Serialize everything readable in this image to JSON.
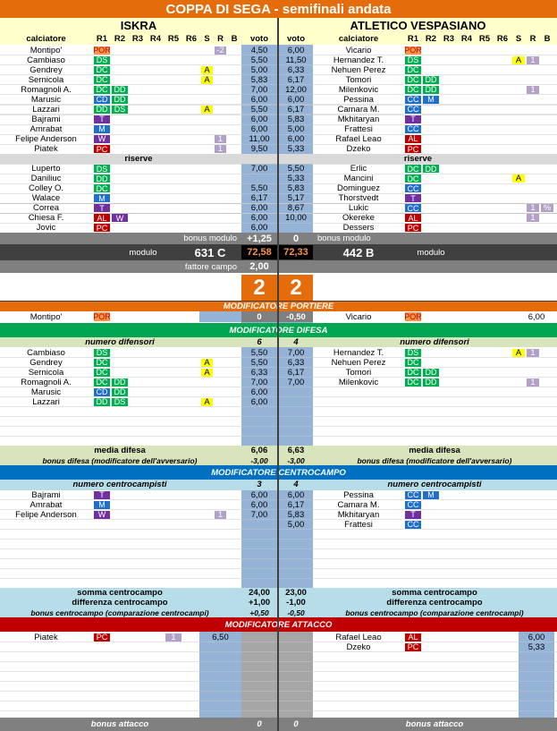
{
  "title": "COPPA DI SEGA - semifinali andata",
  "teams": [
    "ISKRA",
    "ATLETICO VESPASIANO"
  ],
  "header_home": [
    "calciatore",
    "R1",
    "R2",
    "R3",
    "R4",
    "R5",
    "R6",
    "S",
    "R",
    "B",
    "voto"
  ],
  "header_away": [
    "voto",
    "calciatore",
    "R1",
    "R2",
    "R3",
    "R4",
    "R5",
    "R6",
    "S",
    "R",
    "B"
  ],
  "starters": {
    "home": [
      {
        "name": "Montipo'",
        "roles": [
          "POR"
        ],
        "r": "-2",
        "voto": "4,50"
      },
      {
        "name": "Cambiaso",
        "roles": [
          "DS"
        ],
        "voto": "5,50"
      },
      {
        "name": "Gendrey",
        "roles": [
          "DC"
        ],
        "s": "A",
        "voto": "5,00"
      },
      {
        "name": "Sernicola",
        "roles": [
          "DC"
        ],
        "s": "A",
        "voto": "5,83"
      },
      {
        "name": "Romagnoli A.",
        "roles": [
          "DC",
          "DD"
        ],
        "voto": "7,00"
      },
      {
        "name": "Marusic",
        "roles": [
          "CD",
          "DD"
        ],
        "voto": "6,00"
      },
      {
        "name": "Lazzari",
        "roles": [
          "DD",
          "DS"
        ],
        "s": "A",
        "voto": "5,50"
      },
      {
        "name": "Bajrami",
        "roles": [
          "T"
        ],
        "voto": "6,00"
      },
      {
        "name": "Amrabat",
        "roles": [
          "M"
        ],
        "voto": "6,00"
      },
      {
        "name": "Felipe Anderson",
        "roles": [
          "W"
        ],
        "r": "1",
        "voto": "11,00"
      },
      {
        "name": "Piatek",
        "roles": [
          "PC"
        ],
        "r": "1",
        "voto": "9,50"
      }
    ],
    "away": [
      {
        "name": "Vicario",
        "roles": [
          "POR"
        ],
        "voto": "6,00"
      },
      {
        "name": "Hernandez T.",
        "roles": [
          "DS"
        ],
        "s": "A",
        "r": "1",
        "voto": "11,50"
      },
      {
        "name": "Nehuen Perez",
        "roles": [
          "DC"
        ],
        "voto": "6,33"
      },
      {
        "name": "Tomori",
        "roles": [
          "DC",
          "DD"
        ],
        "voto": "6,17"
      },
      {
        "name": "Milenkovic",
        "roles": [
          "DC",
          "DD"
        ],
        "r": "1",
        "voto": "12,00"
      },
      {
        "name": "Pessina",
        "roles": [
          "CC",
          "M"
        ],
        "voto": "6,00"
      },
      {
        "name": "Camara M.",
        "roles": [
          "CC"
        ],
        "voto": "6,17"
      },
      {
        "name": "Mkhitaryan",
        "roles": [
          "T"
        ],
        "voto": "5,83"
      },
      {
        "name": "Frattesi",
        "roles": [
          "CC"
        ],
        "voto": "5,00"
      },
      {
        "name": "Rafael Leao",
        "roles": [
          "AL"
        ],
        "voto": "6,00"
      },
      {
        "name": "Dzeko",
        "roles": [
          "PC"
        ],
        "voto": "5,33"
      }
    ]
  },
  "reserves": {
    "labels": [
      "riserve",
      "riserve"
    ],
    "home": [
      {
        "name": "Luperto",
        "roles": [
          "DS"
        ],
        "voto": "7,00"
      },
      {
        "name": "Daniliuc",
        "roles": [
          "DD"
        ]
      },
      {
        "name": "Colley O.",
        "roles": [
          "DC"
        ],
        "voto": "5,50"
      },
      {
        "name": "Walace",
        "roles": [
          "M"
        ],
        "voto": "6,17"
      },
      {
        "name": "Correa",
        "roles": [
          "T"
        ],
        "voto": "6,00"
      },
      {
        "name": "Chiesa F.",
        "roles": [
          "AL",
          "W"
        ],
        "voto": "6,00"
      },
      {
        "name": "Jovic",
        "roles": [
          "PC"
        ],
        "voto": "6,00"
      }
    ],
    "away": [
      {
        "name": "Erlic",
        "roles": [
          "DC",
          "DD"
        ],
        "voto": "5,50"
      },
      {
        "name": "Mancini",
        "roles": [
          "DC"
        ],
        "s": "A",
        "voto": "5,33"
      },
      {
        "name": "Dominguez",
        "roles": [
          "CC"
        ],
        "voto": "5,83"
      },
      {
        "name": "Thorstvedt",
        "roles": [
          "T"
        ],
        "voto": "5,17"
      },
      {
        "name": "Lukic",
        "roles": [
          "CC"
        ],
        "r": "1",
        "b": "%",
        "voto": "8,67"
      },
      {
        "name": "Okereke",
        "roles": [
          "AL"
        ],
        "r": "1",
        "voto": "10,00"
      },
      {
        "name": "Dessers",
        "roles": [
          "PC"
        ]
      }
    ]
  },
  "bonus_modulo": {
    "labels": [
      "bonus modulo",
      "bonus modulo"
    ],
    "values": [
      "+1,25",
      "0"
    ]
  },
  "modulo": {
    "labels": [
      "modulo",
      "modulo"
    ],
    "formations": [
      "631 C",
      "442 B"
    ],
    "totals": [
      "72,58",
      "72,33"
    ]
  },
  "fattore_campo": {
    "label": "fattore campo",
    "value": "2,00"
  },
  "score": [
    "2",
    "2"
  ],
  "portiere": {
    "title": "MODIFICATORE PORTIERE",
    "home": {
      "name": "Montipo'",
      "roles": [
        "POR"
      ],
      "voto": "6,50"
    },
    "away": {
      "name": "Vicario",
      "roles": [
        "POR"
      ],
      "voto": "6,00"
    },
    "values": [
      "0",
      "-0,50"
    ]
  },
  "difesa": {
    "title": "MODIFICATORE DIFESA",
    "count": {
      "labels": [
        "numero difensori",
        "numero difensori"
      ],
      "values": [
        "6",
        "4"
      ]
    },
    "home": [
      {
        "name": "Cambiaso",
        "roles": [
          "DS"
        ],
        "voto": "5,50"
      },
      {
        "name": "Gendrey",
        "roles": [
          "DC"
        ],
        "s": "A",
        "voto": "5,50"
      },
      {
        "name": "Sernicola",
        "roles": [
          "DC"
        ],
        "s": "A",
        "voto": "6,33"
      },
      {
        "name": "Romagnoli A.",
        "roles": [
          "DC",
          "DD"
        ],
        "voto": "7,00"
      },
      {
        "name": "Marusic",
        "roles": [
          "CD",
          "DD"
        ],
        "voto": "6,00"
      },
      {
        "name": "Lazzari",
        "roles": [
          "DD",
          "DS"
        ],
        "s": "A",
        "voto": "6,00"
      }
    ],
    "away": [
      {
        "name": "Hernandez T.",
        "roles": [
          "DS"
        ],
        "s": "A",
        "r": "1",
        "voto": "7,00"
      },
      {
        "name": "Nehuen Perez",
        "roles": [
          "DC"
        ],
        "voto": "6,33"
      },
      {
        "name": "Tomori",
        "roles": [
          "DC",
          "DD"
        ],
        "voto": "6,17"
      },
      {
        "name": "Milenkovic",
        "roles": [
          "DC",
          "DD"
        ],
        "r": "1",
        "voto": "7,00"
      }
    ],
    "media": {
      "labels": [
        "media difesa",
        "media difesa"
      ],
      "values": [
        "6,06",
        "6,63"
      ]
    },
    "bonus": {
      "labels": [
        "bonus difesa (modificatore dell'avversario)",
        "bonus difesa (modificatore dell'avversario)"
      ],
      "values": [
        "-3,00",
        "-3,00"
      ]
    }
  },
  "centrocampo": {
    "title": "MODIFICATORE CENTROCAMPO",
    "count": {
      "labels": [
        "numero centrocampisti",
        "numero centrocampisti"
      ],
      "values": [
        "3",
        "4"
      ]
    },
    "home": [
      {
        "name": "Bajrami",
        "roles": [
          "T"
        ],
        "voto": "6,00"
      },
      {
        "name": "Amrabat",
        "roles": [
          "M"
        ],
        "voto": "6,00"
      },
      {
        "name": "Felipe Anderson",
        "roles": [
          "W"
        ],
        "r": "1",
        "voto": "7,00"
      }
    ],
    "away": [
      {
        "name": "Pessina",
        "roles": [
          "CC",
          "M"
        ],
        "voto": "6,00"
      },
      {
        "name": "Camara M.",
        "roles": [
          "CC"
        ],
        "voto": "6,17"
      },
      {
        "name": "Mkhitaryan",
        "roles": [
          "T"
        ],
        "voto": "5,83"
      },
      {
        "name": "Frattesi",
        "roles": [
          "CC"
        ],
        "voto": "5,00"
      }
    ],
    "somma": {
      "labels": [
        "somma centrocampo",
        "somma centrocampo"
      ],
      "values": [
        "24,00",
        "23,00"
      ]
    },
    "differenza": {
      "labels": [
        "differenza centrocampo",
        "differenza centrocampo"
      ],
      "values": [
        "+1,00",
        "-1,00"
      ]
    },
    "bonus": {
      "labels": [
        "bonus centrocampo (comparazione centrocampi)",
        "bonus centrocampo (comparazione centrocampi)"
      ],
      "values": [
        "+0,50",
        "-0,50"
      ]
    }
  },
  "attacco": {
    "title": "MODIFICATORE ATTACCO",
    "home": [
      {
        "name": "Piatek",
        "roles": [
          "PC"
        ],
        "r": "1",
        "voto": "6,50"
      }
    ],
    "away": [
      {
        "name": "Rafael Leao",
        "roles": [
          "AL"
        ],
        "voto": "6,00"
      },
      {
        "name": "Dzeko",
        "roles": [
          "PC"
        ],
        "voto": "5,33"
      }
    ],
    "bonus": {
      "labels": [
        "bonus attacco",
        "bonus attacco"
      ],
      "values": [
        "0",
        "0"
      ]
    }
  }
}
